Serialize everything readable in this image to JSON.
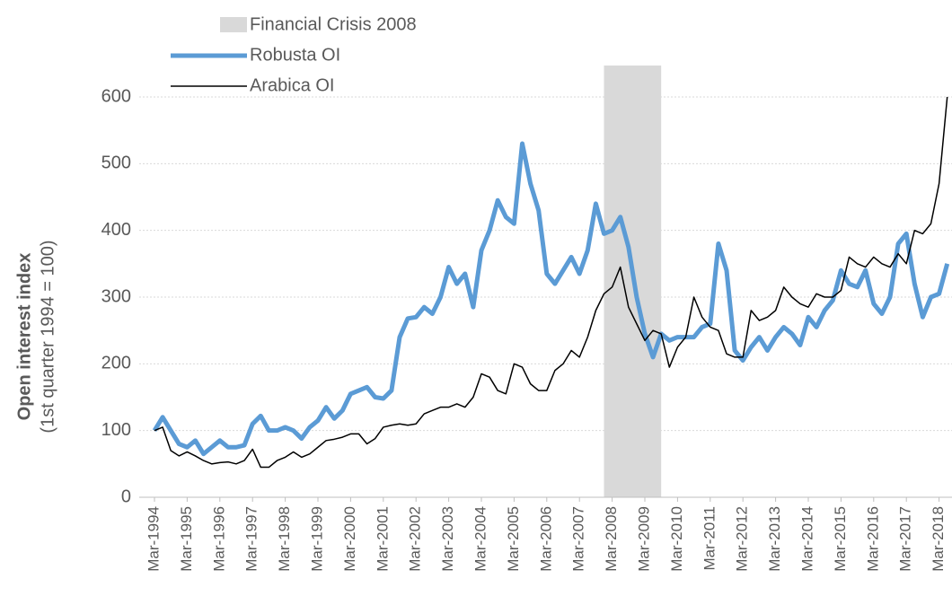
{
  "chart_data": {
    "type": "line",
    "y_label": "Open interest index",
    "y_sublabel": "(1st quarter 1994 = 100)",
    "categories": [
      "Mar-1994",
      null,
      null,
      null,
      "Mar-1995",
      null,
      null,
      null,
      "Mar-1996",
      null,
      null,
      null,
      "Mar-1997",
      null,
      null,
      null,
      "Mar-1998",
      null,
      null,
      null,
      "Mar-1999",
      null,
      null,
      null,
      "Mar-2000",
      null,
      null,
      null,
      "Mar-2001",
      null,
      null,
      null,
      "Mar-2002",
      null,
      null,
      null,
      "Mar-2003",
      null,
      null,
      null,
      "Mar-2004",
      null,
      null,
      null,
      "Mar-2005",
      null,
      null,
      null,
      "Mar-2006",
      null,
      null,
      null,
      "Mar-2007",
      null,
      null,
      null,
      "Mar-2008",
      null,
      null,
      null,
      "Mar-2009",
      null,
      null,
      null,
      "Mar-2010",
      null,
      null,
      null,
      "Mar-2011",
      null,
      null,
      null,
      "Mar-2012",
      null,
      null,
      null,
      "Mar-2013",
      null,
      null,
      null,
      "Mar-2014",
      null,
      null,
      null,
      "Mar-2015",
      null,
      null,
      null,
      "Mar-2016",
      null,
      null,
      null,
      "Mar-2017",
      null,
      null,
      null,
      "Mar-2018",
      null
    ],
    "shade": {
      "name": "Financial Crisis 2008",
      "color": "#d9d9d9",
      "span": [
        55,
        62
      ]
    },
    "series": [
      {
        "name": "Robusta OI",
        "color": "#5b9bd5",
        "width": 5,
        "values": [
          100,
          120,
          100,
          80,
          75,
          85,
          65,
          75,
          85,
          75,
          75,
          78,
          110,
          122,
          100,
          100,
          105,
          100,
          88,
          105,
          115,
          135,
          118,
          130,
          155,
          160,
          165,
          150,
          148,
          160,
          240,
          268,
          270,
          285,
          275,
          300,
          345,
          320,
          335,
          285,
          370,
          400,
          445,
          420,
          410,
          530,
          470,
          430,
          335,
          320,
          340,
          360,
          335,
          370,
          440,
          395,
          400,
          420,
          375,
          300,
          245,
          210,
          245,
          235,
          240,
          240,
          240,
          255,
          260,
          380,
          340,
          220,
          205,
          225,
          240,
          220,
          240,
          255,
          245,
          228,
          270,
          255,
          280,
          295,
          340,
          320,
          315,
          340,
          290,
          275,
          300,
          380,
          395,
          320,
          270,
          300,
          305,
          350
        ]
      },
      {
        "name": "Arabica OI",
        "color": "#000000",
        "width": 1.5,
        "values": [
          100,
          105,
          70,
          62,
          68,
          62,
          55,
          50,
          52,
          53,
          50,
          55,
          72,
          45,
          45,
          55,
          60,
          68,
          60,
          65,
          75,
          85,
          87,
          90,
          95,
          95,
          80,
          88,
          105,
          108,
          110,
          108,
          110,
          125,
          130,
          135,
          135,
          140,
          135,
          150,
          185,
          180,
          160,
          155,
          200,
          195,
          170,
          160,
          160,
          190,
          200,
          220,
          210,
          240,
          280,
          305,
          315,
          345,
          285,
          260,
          235,
          250,
          245,
          195,
          225,
          240,
          300,
          270,
          255,
          250,
          215,
          210,
          210,
          280,
          265,
          270,
          280,
          315,
          300,
          290,
          285,
          305,
          300,
          300,
          310,
          360,
          350,
          345,
          360,
          350,
          345,
          365,
          350,
          400,
          395,
          410,
          470,
          600
        ]
      }
    ],
    "ylim": [
      0,
      600
    ],
    "yticks": [
      0,
      100,
      200,
      300,
      400,
      500,
      600
    ],
    "grid": true
  }
}
